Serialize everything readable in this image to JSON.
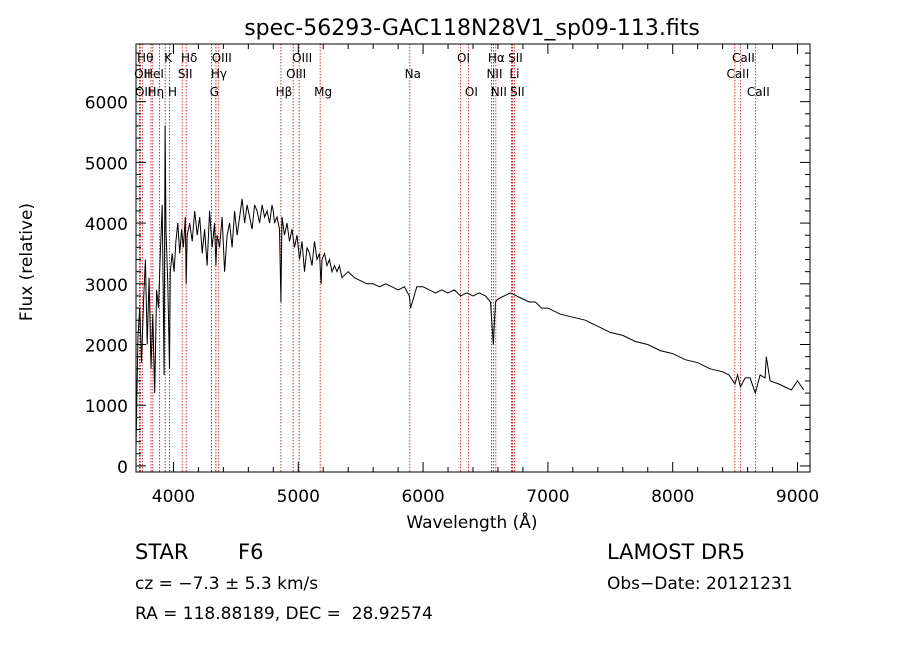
{
  "chart_data": {
    "type": "line",
    "title": "spec-56293-GAC118N28V1_sp09-113.fits",
    "xlabel": "Wavelength (Å)",
    "ylabel": "Flux (relative)",
    "xlim": [
      3700,
      9100
    ],
    "ylim": [
      -100,
      6950
    ],
    "x_ticks": [
      4000,
      5000,
      6000,
      7000,
      8000,
      9000
    ],
    "y_ticks": [
      0,
      1000,
      2000,
      3000,
      4000,
      5000,
      6000
    ],
    "grid": false,
    "series": [
      {
        "x": [
          3700,
          3715,
          3730,
          3745,
          3760,
          3775,
          3790,
          3805,
          3820,
          3835,
          3850,
          3865,
          3880,
          3895,
          3910,
          3925,
          3933,
          3940,
          3955,
          3968,
          3975,
          3990,
          4005,
          4020,
          4035,
          4050,
          4065,
          4080,
          4095,
          4102,
          4110,
          4130,
          4150,
          4170,
          4190,
          4210,
          4230,
          4250,
          4270,
          4290,
          4310,
          4330,
          4340,
          4350,
          4370,
          4390,
          4410,
          4430,
          4450,
          4470,
          4490,
          4510,
          4530,
          4550,
          4570,
          4590,
          4610,
          4630,
          4650,
          4670,
          4690,
          4710,
          4730,
          4750,
          4770,
          4790,
          4800,
          4810,
          4830,
          4850,
          4861,
          4870,
          4890,
          4910,
          4930,
          4950,
          4970,
          4990,
          5010,
          5030,
          5050,
          5070,
          5090,
          5110,
          5130,
          5150,
          5170,
          5183,
          5190,
          5210,
          5230,
          5250,
          5270,
          5290,
          5310,
          5330,
          5350,
          5400,
          5450,
          5500,
          5550,
          5600,
          5650,
          5700,
          5750,
          5800,
          5850,
          5890,
          5900,
          5950,
          6000,
          6050,
          6100,
          6150,
          6200,
          6250,
          6300,
          6350,
          6400,
          6450,
          6500,
          6540,
          6563,
          6580,
          6600,
          6650,
          6700,
          6750,
          6800,
          6850,
          6900,
          6950,
          7000,
          7100,
          7200,
          7300,
          7400,
          7500,
          7600,
          7700,
          7800,
          7900,
          8000,
          8100,
          8200,
          8300,
          8400,
          8450,
          8498,
          8520,
          8542,
          8580,
          8620,
          8662,
          8700,
          8740,
          8750,
          8780,
          8850,
          8900,
          8950,
          9000,
          9050
        ],
        "y": [
          300,
          2100,
          2600,
          1700,
          2700,
          3400,
          2000,
          3100,
          1600,
          2500,
          1200,
          2900,
          2600,
          3500,
          4300,
          1500,
          5600,
          3900,
          3000,
          1600,
          3200,
          3500,
          3200,
          3700,
          4000,
          3500,
          3900,
          3600,
          4100,
          3000,
          3800,
          4000,
          3700,
          4200,
          3800,
          4100,
          3500,
          3900,
          3300,
          4200,
          3600,
          4000,
          3300,
          3800,
          3600,
          4100,
          3200,
          3800,
          4000,
          3600,
          4200,
          3800,
          4100,
          4400,
          4000,
          4300,
          4100,
          3900,
          4300,
          4200,
          4000,
          4300,
          4100,
          4200,
          4000,
          4300,
          4200,
          4000,
          4100,
          3900,
          2700,
          4100,
          3800,
          4000,
          3700,
          3900,
          3600,
          3800,
          3400,
          3700,
          3200,
          3600,
          3500,
          3300,
          3700,
          3400,
          3500,
          3000,
          3400,
          3500,
          3300,
          3400,
          3200,
          3300,
          3200,
          3300,
          3100,
          3200,
          3100,
          3050,
          3000,
          3000,
          2950,
          3000,
          2950,
          2900,
          2950,
          2800,
          2600,
          2950,
          2950,
          2900,
          2850,
          2900,
          2850,
          2900,
          2800,
          2850,
          2800,
          2850,
          2800,
          2700,
          2000,
          2700,
          2750,
          2800,
          2850,
          2800,
          2750,
          2700,
          2700,
          2600,
          2600,
          2500,
          2450,
          2400,
          2300,
          2200,
          2150,
          2050,
          2000,
          1900,
          1850,
          1750,
          1700,
          1600,
          1550,
          1500,
          1350,
          1500,
          1300,
          1450,
          1450,
          1200,
          1500,
          1450,
          1800,
          1400,
          1350,
          1300,
          1250,
          1400,
          1250
        ]
      }
    ],
    "lines": [
      {
        "x": 3727,
        "label": "OII",
        "row": 2
      },
      {
        "x": 3734,
        "label": "OII",
        "row": 3
      },
      {
        "x": 3750,
        "label": "Hθ",
        "row": 1
      },
      {
        "x": 3820,
        "label": "HeI",
        "row": 2
      },
      {
        "x": 3835,
        "label": "Hη",
        "row": 3
      },
      {
        "x": 3889,
        "label": "",
        "row": 0
      },
      {
        "x": 3933.7,
        "label": "K",
        "row": 1
      },
      {
        "x": 3968.5,
        "label": "H",
        "row": 3
      },
      {
        "x": 4070,
        "label": "SII",
        "row": 2
      },
      {
        "x": 4101.7,
        "label": "Hδ",
        "row": 1
      },
      {
        "x": 4304.4,
        "label": "G",
        "row": 3
      },
      {
        "x": 4340.5,
        "label": "Hγ",
        "row": 2
      },
      {
        "x": 4363,
        "label": "OIII",
        "row": 1
      },
      {
        "x": 4861.3,
        "label": "Hβ",
        "row": 3
      },
      {
        "x": 4959,
        "label": "OIII",
        "row": 2
      },
      {
        "x": 5007,
        "label": "OIII",
        "row": 1
      },
      {
        "x": 5175.4,
        "label": "Mg",
        "row": 3
      },
      {
        "x": 5894,
        "label": "Na",
        "row": 2
      },
      {
        "x": 6300,
        "label": "OI",
        "row": 1
      },
      {
        "x": 6363,
        "label": "OI",
        "row": 3
      },
      {
        "x": 6548,
        "label": "NII",
        "row": 2
      },
      {
        "x": 6563,
        "label": "Hα",
        "row": 1
      },
      {
        "x": 6583,
        "label": "NII",
        "row": 3
      },
      {
        "x": 6707.8,
        "label": "Li",
        "row": 2
      },
      {
        "x": 6716,
        "label": "SII",
        "row": 1
      },
      {
        "x": 6731,
        "label": "SII",
        "row": 3
      },
      {
        "x": 8498,
        "label": "CaII",
        "row": 2
      },
      {
        "x": 8542,
        "label": "CaII",
        "row": 1
      },
      {
        "x": 8662,
        "label": "CaII",
        "row": 3
      }
    ]
  },
  "info": {
    "class": "STAR",
    "subclass": "F6",
    "survey": "LAMOST DR5",
    "cz": "cz = −7.3 ± 5.3 km/s",
    "obs_date": "Obs−Date: 20121231",
    "coords": "RA = 118.88189, DEC =  28.92574"
  },
  "colors": {
    "spectrum": "#000000",
    "line_marker": "#c00000",
    "axes": "#000000",
    "background": "#ffffff"
  }
}
